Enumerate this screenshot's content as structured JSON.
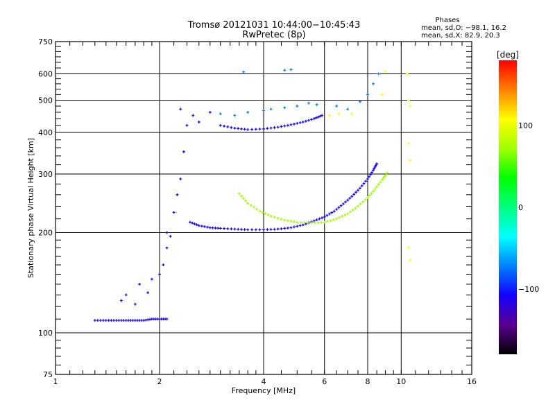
{
  "chart_data": {
    "type": "scatter",
    "title": "Tromsø 20121031 10:44:00−10:45:43",
    "subtitle": "RwPretec (8p)",
    "xlabel": "Frequency [MHz]",
    "ylabel": "Stationary phase Virtual Height [km]",
    "xscale": "log2",
    "yscale": "log10",
    "xlim": [
      1,
      16
    ],
    "ylim": [
      75,
      750
    ],
    "grid": true,
    "x_ticks": [
      1,
      2,
      4,
      6,
      8,
      10,
      16
    ],
    "x_tick_labels": [
      "1",
      "2",
      "4",
      "6",
      "8",
      "10",
      "16"
    ],
    "x_gridlines": [
      2,
      4,
      6,
      8,
      10
    ],
    "y_ticks": [
      75,
      100,
      200,
      300,
      400,
      500,
      600,
      750
    ],
    "y_tick_labels": [
      "75",
      "100",
      "200",
      "300",
      "400",
      "500",
      "600",
      "750"
    ],
    "y_gridlines": [
      100,
      200,
      300,
      400,
      500,
      600
    ],
    "annotation": {
      "heading": "Phases",
      "line_o": "mean, sd,O: −98.1, 16.2",
      "line_x": "mean, sd,X:  82.9, 20.3"
    },
    "colorbar": {
      "label": "[deg]",
      "range": [
        -180,
        180
      ],
      "tick_values": [
        100,
        0,
        -100
      ],
      "tick_labels": [
        "100",
        "0",
        "−100"
      ],
      "colormap": [
        "#000000",
        "#5a0090",
        "#1400ff",
        "#0080ff",
        "#00ffff",
        "#00ff80",
        "#00ff00",
        "#a0ff00",
        "#ffff00",
        "#ff8000",
        "#ff0000"
      ]
    },
    "series": [
      {
        "name": "O-mode F-layer trace",
        "phase_deg": -100,
        "points": [
          [
            2.45,
            215
          ],
          [
            2.6,
            210
          ],
          [
            2.8,
            207
          ],
          [
            3.0,
            206
          ],
          [
            3.3,
            205
          ],
          [
            3.6,
            204
          ],
          [
            4.0,
            204
          ],
          [
            4.4,
            205
          ],
          [
            4.8,
            207
          ],
          [
            5.2,
            211
          ],
          [
            5.6,
            217
          ],
          [
            6.0,
            223
          ],
          [
            6.4,
            232
          ],
          [
            6.8,
            244
          ],
          [
            7.2,
            257
          ],
          [
            7.6,
            272
          ],
          [
            8.0,
            290
          ],
          [
            8.3,
            308
          ],
          [
            8.5,
            322
          ]
        ]
      },
      {
        "name": "X-mode F-layer trace",
        "phase_deg": 85,
        "points": [
          [
            3.4,
            262
          ],
          [
            3.6,
            245
          ],
          [
            3.9,
            232
          ],
          [
            4.2,
            224
          ],
          [
            4.6,
            218
          ],
          [
            5.0,
            215
          ],
          [
            5.5,
            214
          ],
          [
            6.0,
            215
          ],
          [
            6.5,
            220
          ],
          [
            7.0,
            228
          ],
          [
            7.5,
            240
          ],
          [
            8.0,
            255
          ],
          [
            8.4,
            270
          ],
          [
            8.8,
            288
          ],
          [
            9.1,
            302
          ]
        ]
      },
      {
        "name": "E/Es low trace",
        "phase_deg": -100,
        "points": [
          [
            1.3,
            109
          ],
          [
            1.4,
            109
          ],
          [
            1.5,
            109
          ],
          [
            1.6,
            109
          ],
          [
            1.7,
            109
          ],
          [
            1.8,
            109
          ],
          [
            1.9,
            110
          ],
          [
            2.0,
            110
          ],
          [
            2.1,
            110
          ]
        ]
      },
      {
        "name": "Spread near 2 MHz",
        "phase_deg": -100,
        "points": [
          [
            1.55,
            125
          ],
          [
            1.6,
            130
          ],
          [
            1.7,
            122
          ],
          [
            1.75,
            140
          ],
          [
            1.85,
            132
          ],
          [
            1.9,
            145
          ],
          [
            2.0,
            150
          ],
          [
            2.05,
            160
          ],
          [
            2.1,
            180
          ],
          [
            2.1,
            200
          ],
          [
            2.15,
            195
          ],
          [
            2.2,
            230
          ],
          [
            2.25,
            260
          ],
          [
            2.3,
            290
          ],
          [
            2.35,
            350
          ],
          [
            2.4,
            420
          ],
          [
            2.3,
            470
          ],
          [
            2.5,
            450
          ],
          [
            2.6,
            430
          ],
          [
            2.8,
            460
          ]
        ]
      },
      {
        "name": "F2 upper trace",
        "phase_deg": -105,
        "points": [
          [
            3.0,
            420
          ],
          [
            3.3,
            412
          ],
          [
            3.6,
            408
          ],
          [
            4.0,
            410
          ],
          [
            4.4,
            415
          ],
          [
            4.8,
            422
          ],
          [
            5.2,
            430
          ],
          [
            5.6,
            440
          ],
          [
            5.9,
            450
          ]
        ]
      },
      {
        "name": "F2 upper spread",
        "phase_deg": -90,
        "points": [
          [
            3.0,
            455
          ],
          [
            3.3,
            450
          ],
          [
            3.6,
            460
          ],
          [
            4.0,
            465
          ],
          [
            4.2,
            470
          ],
          [
            4.6,
            475
          ],
          [
            5.0,
            480
          ],
          [
            5.4,
            490
          ],
          [
            5.7,
            485
          ],
          [
            6.5,
            480
          ],
          [
            7.0,
            470
          ],
          [
            7.6,
            495
          ],
          [
            8.0,
            520
          ],
          [
            8.3,
            560
          ],
          [
            8.6,
            600
          ]
        ]
      },
      {
        "name": "Isolated high echoes",
        "phase_deg": -90,
        "points": [
          [
            3.5,
            608
          ],
          [
            4.6,
            615
          ],
          [
            4.8,
            618
          ]
        ]
      },
      {
        "name": "Scattered X echoes",
        "phase_deg": 110,
        "points": [
          [
            6.2,
            450
          ],
          [
            6.6,
            455
          ],
          [
            7.2,
            455
          ],
          [
            8.8,
            520
          ],
          [
            9.0,
            610
          ],
          [
            10.4,
            600
          ],
          [
            10.5,
            500
          ],
          [
            10.6,
            480
          ],
          [
            10.5,
            370
          ],
          [
            10.6,
            330
          ],
          [
            10.5,
            180
          ],
          [
            10.6,
            165
          ]
        ]
      }
    ]
  }
}
